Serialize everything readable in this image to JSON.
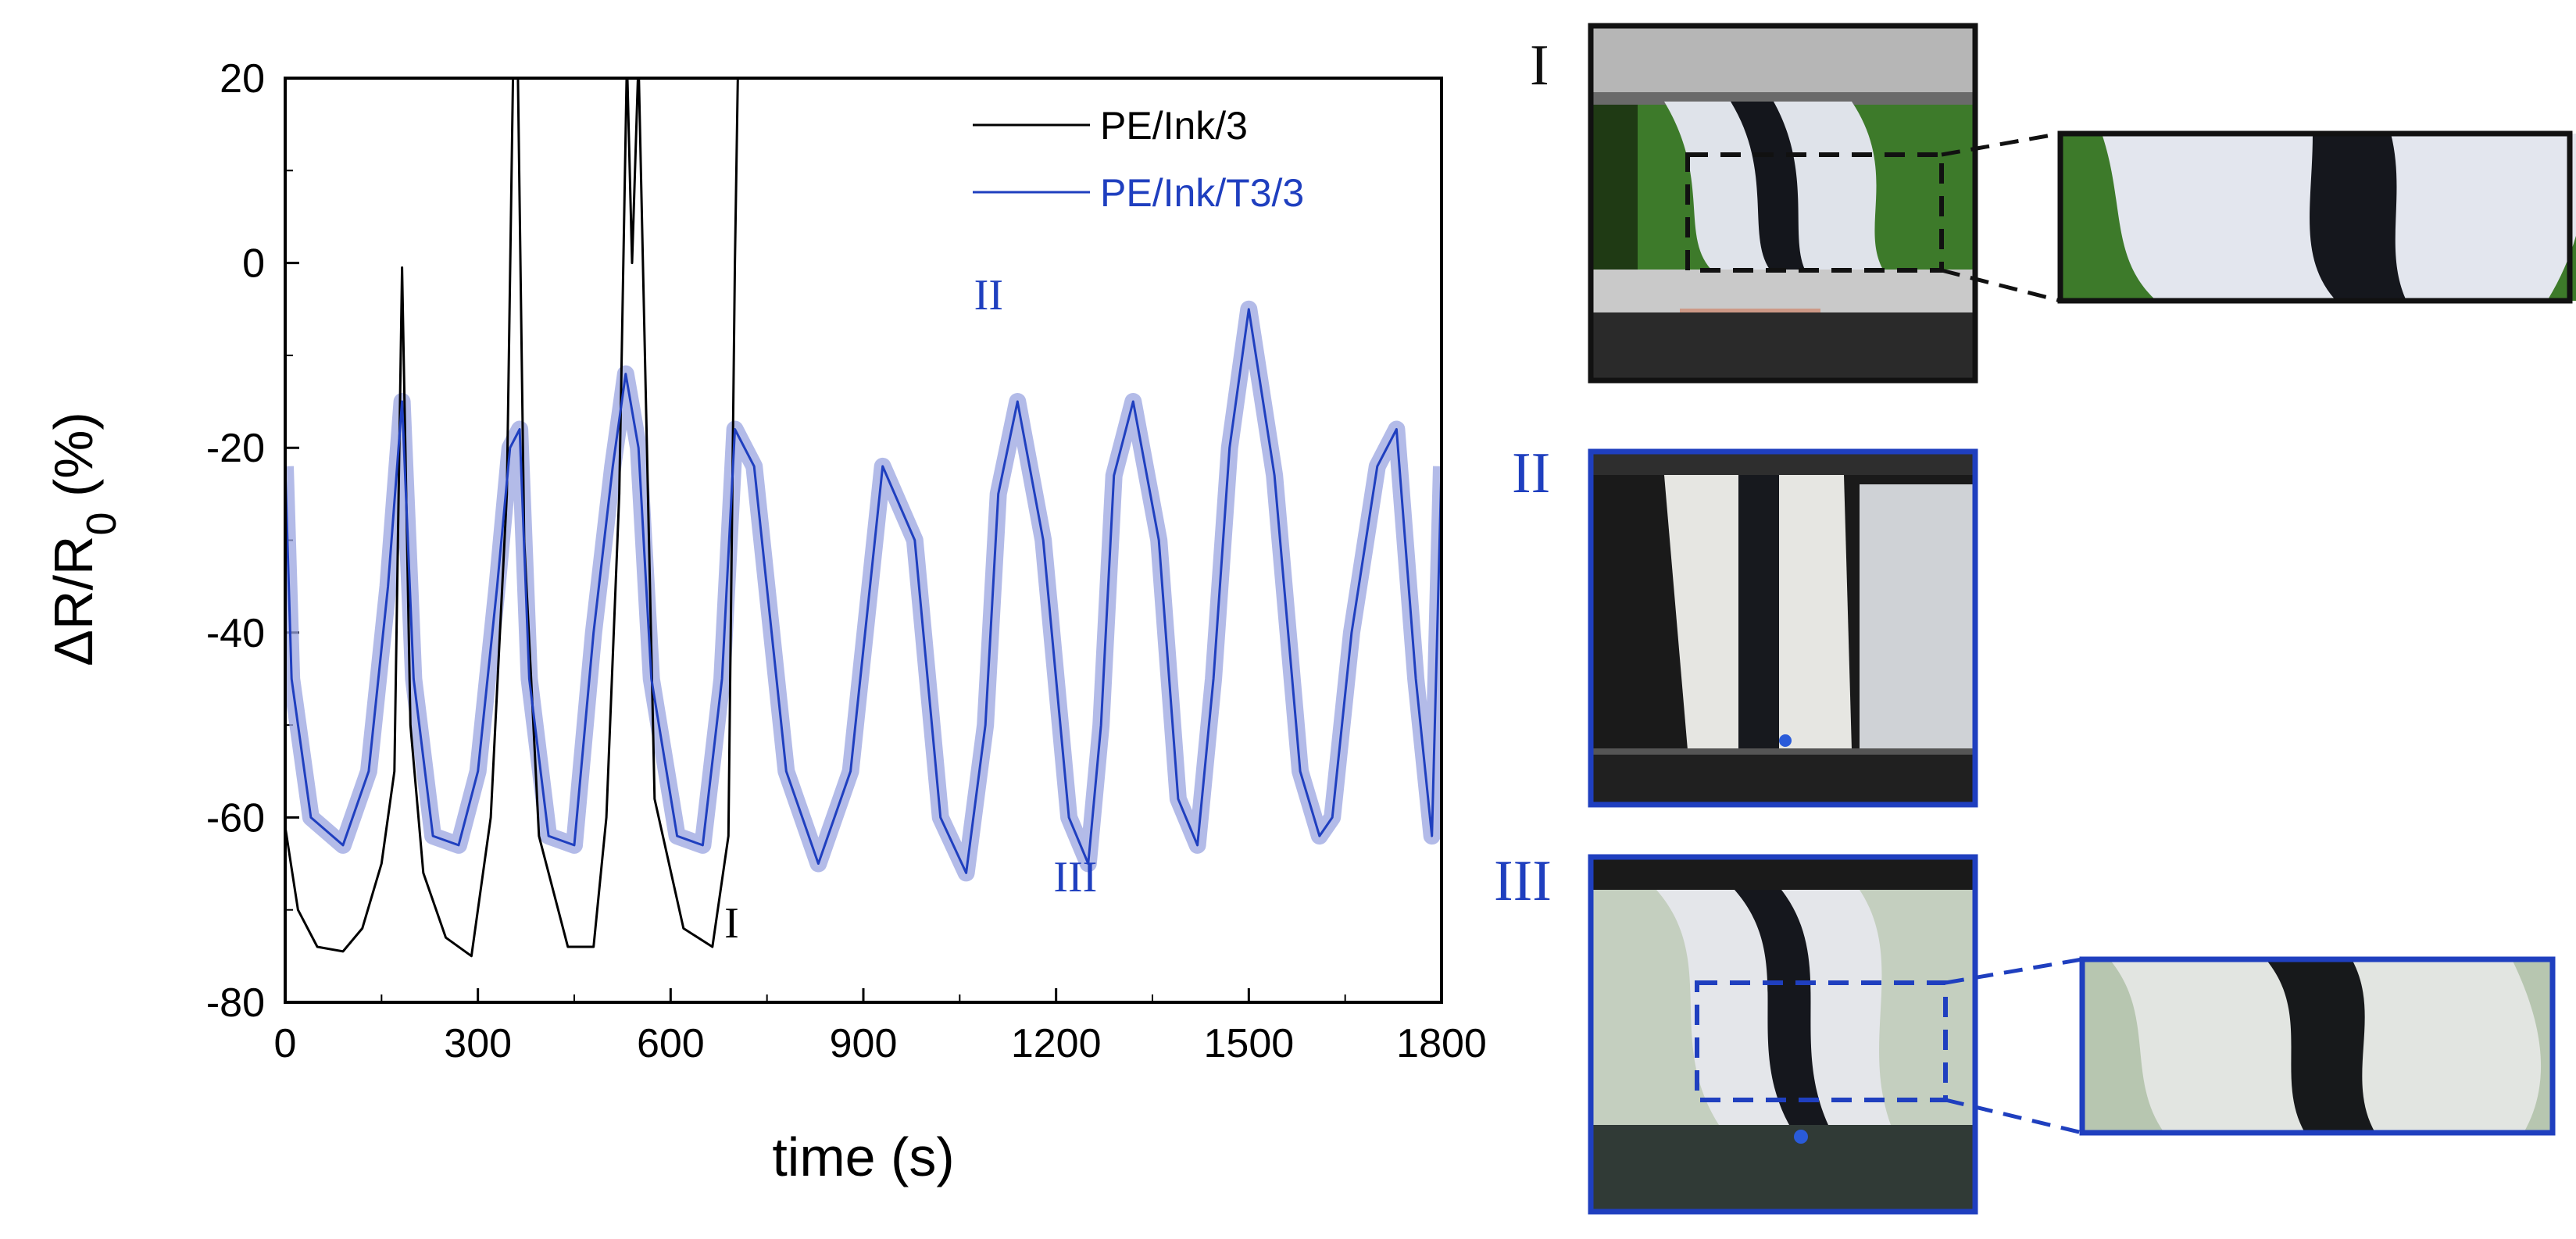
{
  "chart_data": {
    "type": "line",
    "xlabel": "time (s)",
    "ylabel": "ΔR/R",
    "ylabel_subscript": "0",
    "ylabel_unit": " (%)",
    "xlim": [
      0,
      1800
    ],
    "ylim": [
      -80,
      20
    ],
    "x_ticks": [
      "0",
      "300",
      "600",
      "900",
      "1200",
      "1500",
      "1800"
    ],
    "y_ticks": [
      "20",
      "0",
      "-20",
      "-40",
      "-60",
      "-80"
    ],
    "legend_position": "top-right",
    "series": [
      {
        "name": "PE/Ink/3",
        "color": "#000000",
        "x": [
          0,
          20,
          50,
          90,
          120,
          150,
          170,
          182,
          195,
          215,
          250,
          290,
          320,
          345,
          355,
          362,
          372,
          395,
          440,
          480,
          500,
          520,
          532,
          540,
          550,
          575,
          620,
          665,
          690,
          700,
          705
        ],
        "y": [
          -61,
          -70,
          -74,
          -74.5,
          -72,
          -65,
          -55,
          -0.5,
          -50,
          -66,
          -73,
          -75,
          -60,
          -25,
          22,
          22,
          -30,
          -62,
          -74,
          -74,
          -60,
          -25,
          22,
          0,
          22,
          -58,
          -72,
          -74,
          -62,
          0,
          22
        ]
      },
      {
        "name": "PE/Ink/T3/3",
        "color": "#1f3fbf",
        "band_color": "#9aa4e0",
        "x": [
          0,
          10,
          40,
          90,
          130,
          160,
          182,
          200,
          230,
          270,
          300,
          330,
          350,
          365,
          380,
          410,
          450,
          480,
          510,
          530,
          550,
          570,
          610,
          650,
          680,
          700,
          730,
          780,
          830,
          880,
          930,
          980,
          1020,
          1060,
          1090,
          1110,
          1140,
          1180,
          1220,
          1250,
          1270,
          1290,
          1320,
          1360,
          1390,
          1420,
          1445,
          1470,
          1500,
          1540,
          1580,
          1610,
          1630,
          1660,
          1700,
          1730,
          1760,
          1785,
          1800
        ],
        "y": [
          -22,
          -45,
          -60,
          -63,
          -55,
          -35,
          -15,
          -45,
          -62,
          -63,
          -55,
          -35,
          -20,
          -18,
          -45,
          -62,
          -63,
          -40,
          -22,
          -12,
          -20,
          -45,
          -62,
          -63,
          -45,
          -18,
          -22,
          -55,
          -65,
          -55,
          -22,
          -30,
          -60,
          -66,
          -50,
          -25,
          -15,
          -30,
          -60,
          -65,
          -50,
          -23,
          -15,
          -30,
          -58,
          -63,
          -45,
          -20,
          -5,
          -23,
          -55,
          -62,
          -60,
          -40,
          -22,
          -18,
          -45,
          -62,
          -22
        ]
      }
    ],
    "annotations": [
      {
        "text": "I",
        "color": "#000000",
        "x": 695,
        "y": -73
      },
      {
        "text": "II",
        "color": "#1f3fbf",
        "x": 1095,
        "y": -5
      },
      {
        "text": "III",
        "color": "#1f3fbf",
        "x": 1230,
        "y": -68
      }
    ]
  },
  "panels": [
    {
      "label": "I",
      "label_color": "#111111",
      "frame_color": "#111111",
      "inset": true
    },
    {
      "label": "II",
      "label_color": "#1f3fbf",
      "frame_color": "#1f3fbf",
      "inset": false
    },
    {
      "label": "III",
      "label_color": "#1f3fbf",
      "frame_color": "#1f3fbf",
      "inset": true
    }
  ]
}
